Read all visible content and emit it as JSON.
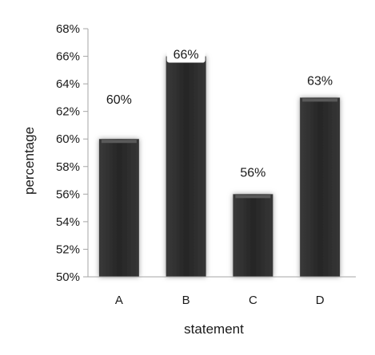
{
  "chart_data": {
    "type": "bar",
    "title": "",
    "xlabel": "statement",
    "ylabel": "percentage",
    "categories": [
      "A",
      "B",
      "C",
      "D"
    ],
    "values": [
      60,
      66,
      56,
      63
    ],
    "data_labels": [
      "60%",
      "66%",
      "56%",
      "63%"
    ],
    "ylim": [
      50,
      68
    ],
    "y_ticks": [
      50,
      52,
      54,
      56,
      58,
      60,
      62,
      64,
      66,
      68
    ],
    "y_tick_labels": [
      "50%",
      "52%",
      "54%",
      "56%",
      "58%",
      "60%",
      "62%",
      "64%",
      "66%",
      "68%"
    ],
    "grid": false,
    "legend": "none"
  },
  "colors": {
    "bar_fill": "#2b2b2b",
    "bar_glow": "#9a9a9a",
    "axis": "#a6a6a6",
    "text": "#1a1a1a"
  }
}
